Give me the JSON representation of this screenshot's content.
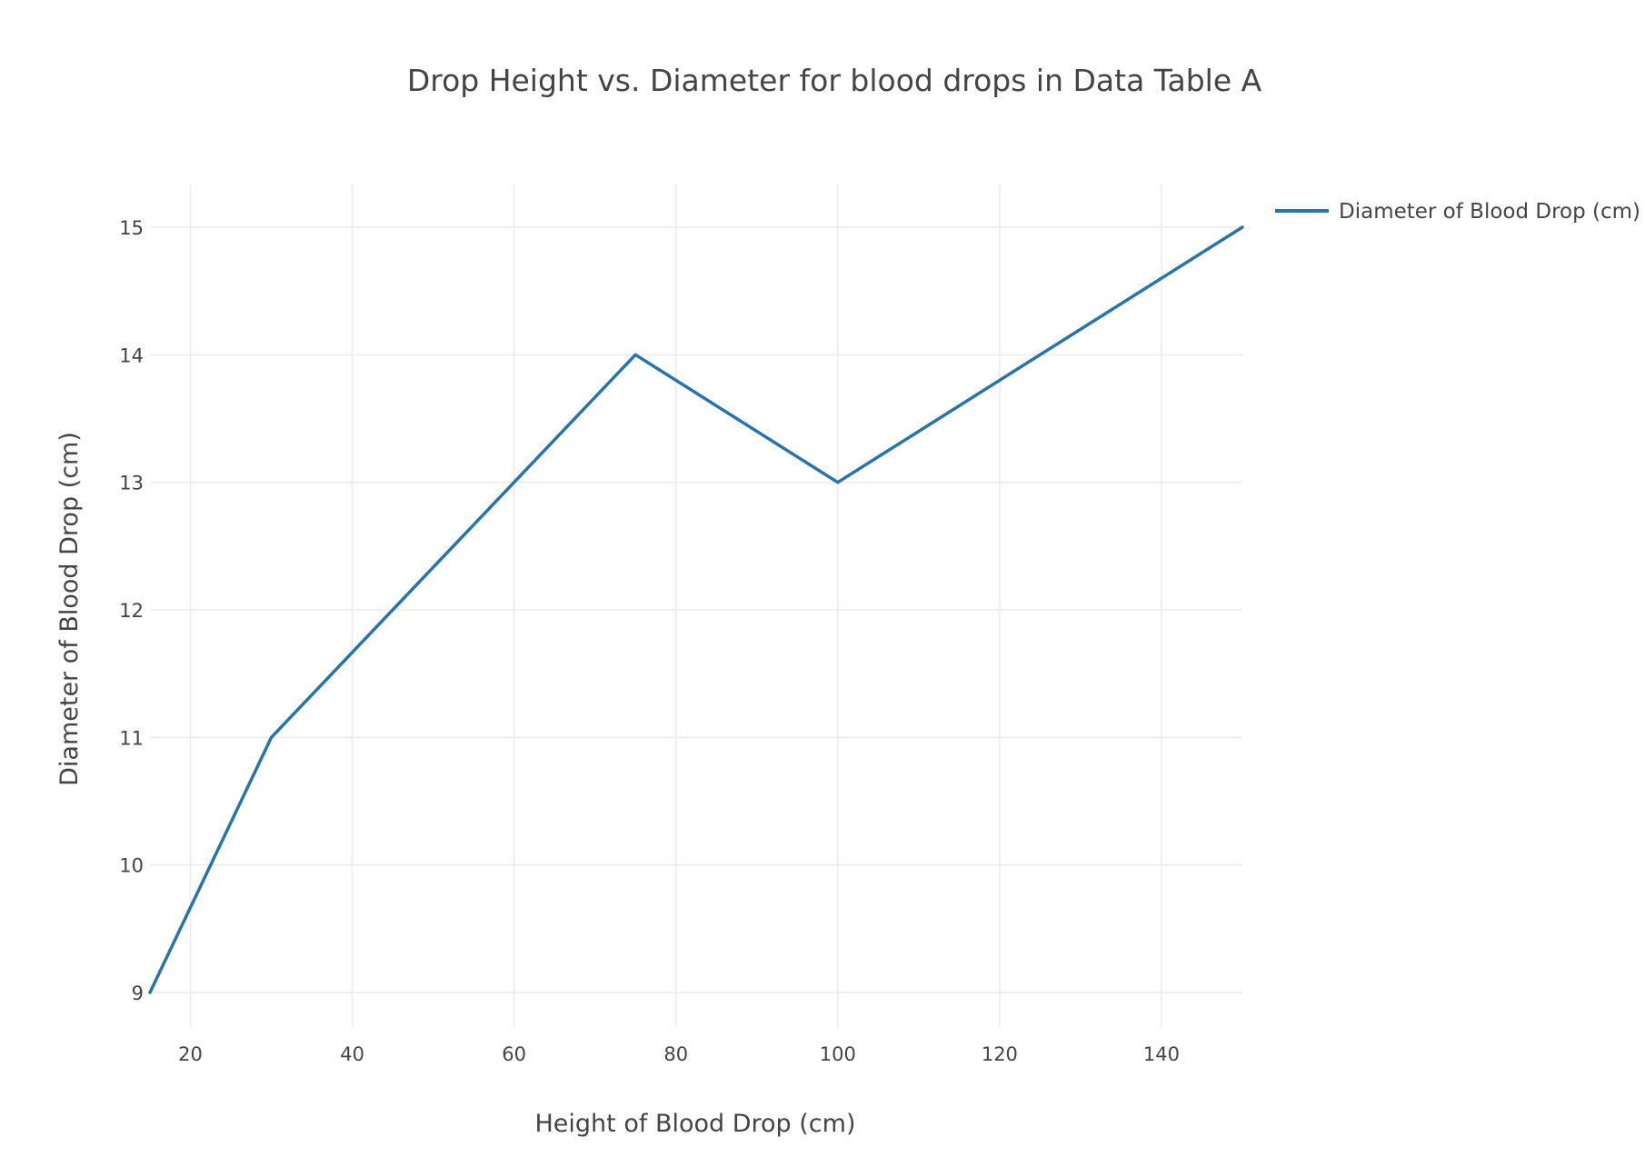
{
  "chart_data": {
    "type": "line",
    "title": "Drop Height vs. Diameter for blood drops in Data Table A",
    "xlabel": "Height of Blood Drop (cm)",
    "ylabel": "Diameter of Blood Drop (cm)",
    "xlim": [
      15,
      150
    ],
    "ylim": [
      8.67,
      15.33
    ],
    "x_ticks": [
      "20",
      "40",
      "60",
      "80",
      "100",
      "120",
      "140"
    ],
    "y_ticks": [
      "9",
      "10",
      "11",
      "12",
      "13",
      "14",
      "15"
    ],
    "grid": true,
    "legend_position": "top-right",
    "series": [
      {
        "name": "Diameter of Blood Drop (cm)",
        "color": "#2874a6",
        "x": [
          15,
          30,
          75,
          100,
          150
        ],
        "y": [
          9,
          11,
          14,
          13,
          15
        ]
      }
    ]
  }
}
